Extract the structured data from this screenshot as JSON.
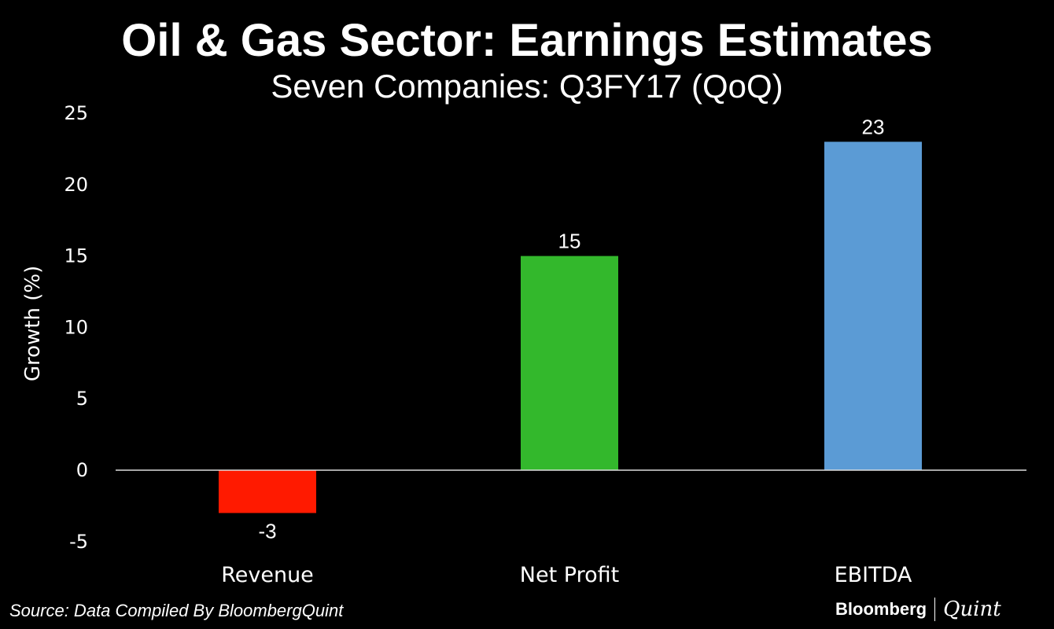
{
  "chart_data": {
    "type": "bar",
    "title": "Oil & Gas Sector: Earnings Estimates",
    "subtitle": "Seven Companies: Q3FY17 (QoQ)",
    "xlabel": "",
    "ylabel": "Growth (%)",
    "ylim": [
      -5,
      25
    ],
    "yticks": [
      -5,
      0,
      5,
      10,
      15,
      20,
      25
    ],
    "categories": [
      "Revenue",
      "Net Profit",
      "EBITDA"
    ],
    "values": [
      -3,
      15,
      23
    ],
    "data_labels": [
      "-3",
      "15",
      "23"
    ],
    "colors": [
      "#ff1a00",
      "#33b82c",
      "#5b9bd5"
    ],
    "grid": false,
    "legend": "none"
  },
  "source": "Source: Data Compiled By BloombergQuint",
  "logo": {
    "left": "Bloomberg",
    "right": "Quint"
  }
}
